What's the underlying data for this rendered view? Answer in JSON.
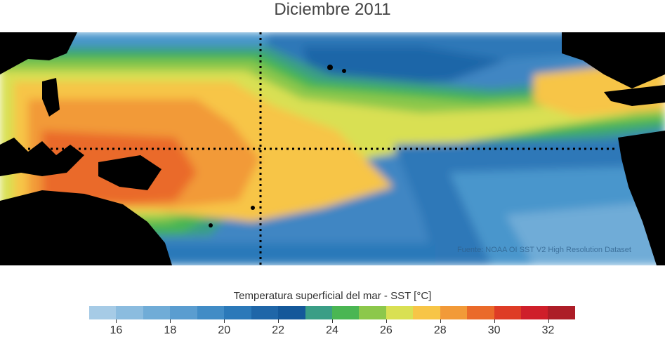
{
  "title": "Diciembre 2011",
  "source_text": "Fuente: NOAA OI SST V2 High Resolution Dataset",
  "colorbar": {
    "title": "Temperatura superficial del mar - SST  [°C]",
    "min": 15,
    "max": 33,
    "tick_values": [
      16,
      18,
      20,
      22,
      24,
      26,
      28,
      30,
      32
    ],
    "tick_labels": [
      "16",
      "18",
      "20",
      "22",
      "24",
      "26",
      "28",
      "30",
      "32"
    ],
    "colors": [
      "#a6cbe6",
      "#8bbcdf",
      "#70acd7",
      "#5a9dd0",
      "#418cc6",
      "#2b79b9",
      "#1f66a8",
      "#14589a",
      "#3a9e86",
      "#4ab653",
      "#8cc84b",
      "#d9e053",
      "#f7c547",
      "#f29a38",
      "#ea6a2a",
      "#de3c26",
      "#cf1f2a",
      "#ad1d27"
    ]
  },
  "legend_colors": {
    "land": "#000000",
    "reference_lines": "#000000"
  }
}
